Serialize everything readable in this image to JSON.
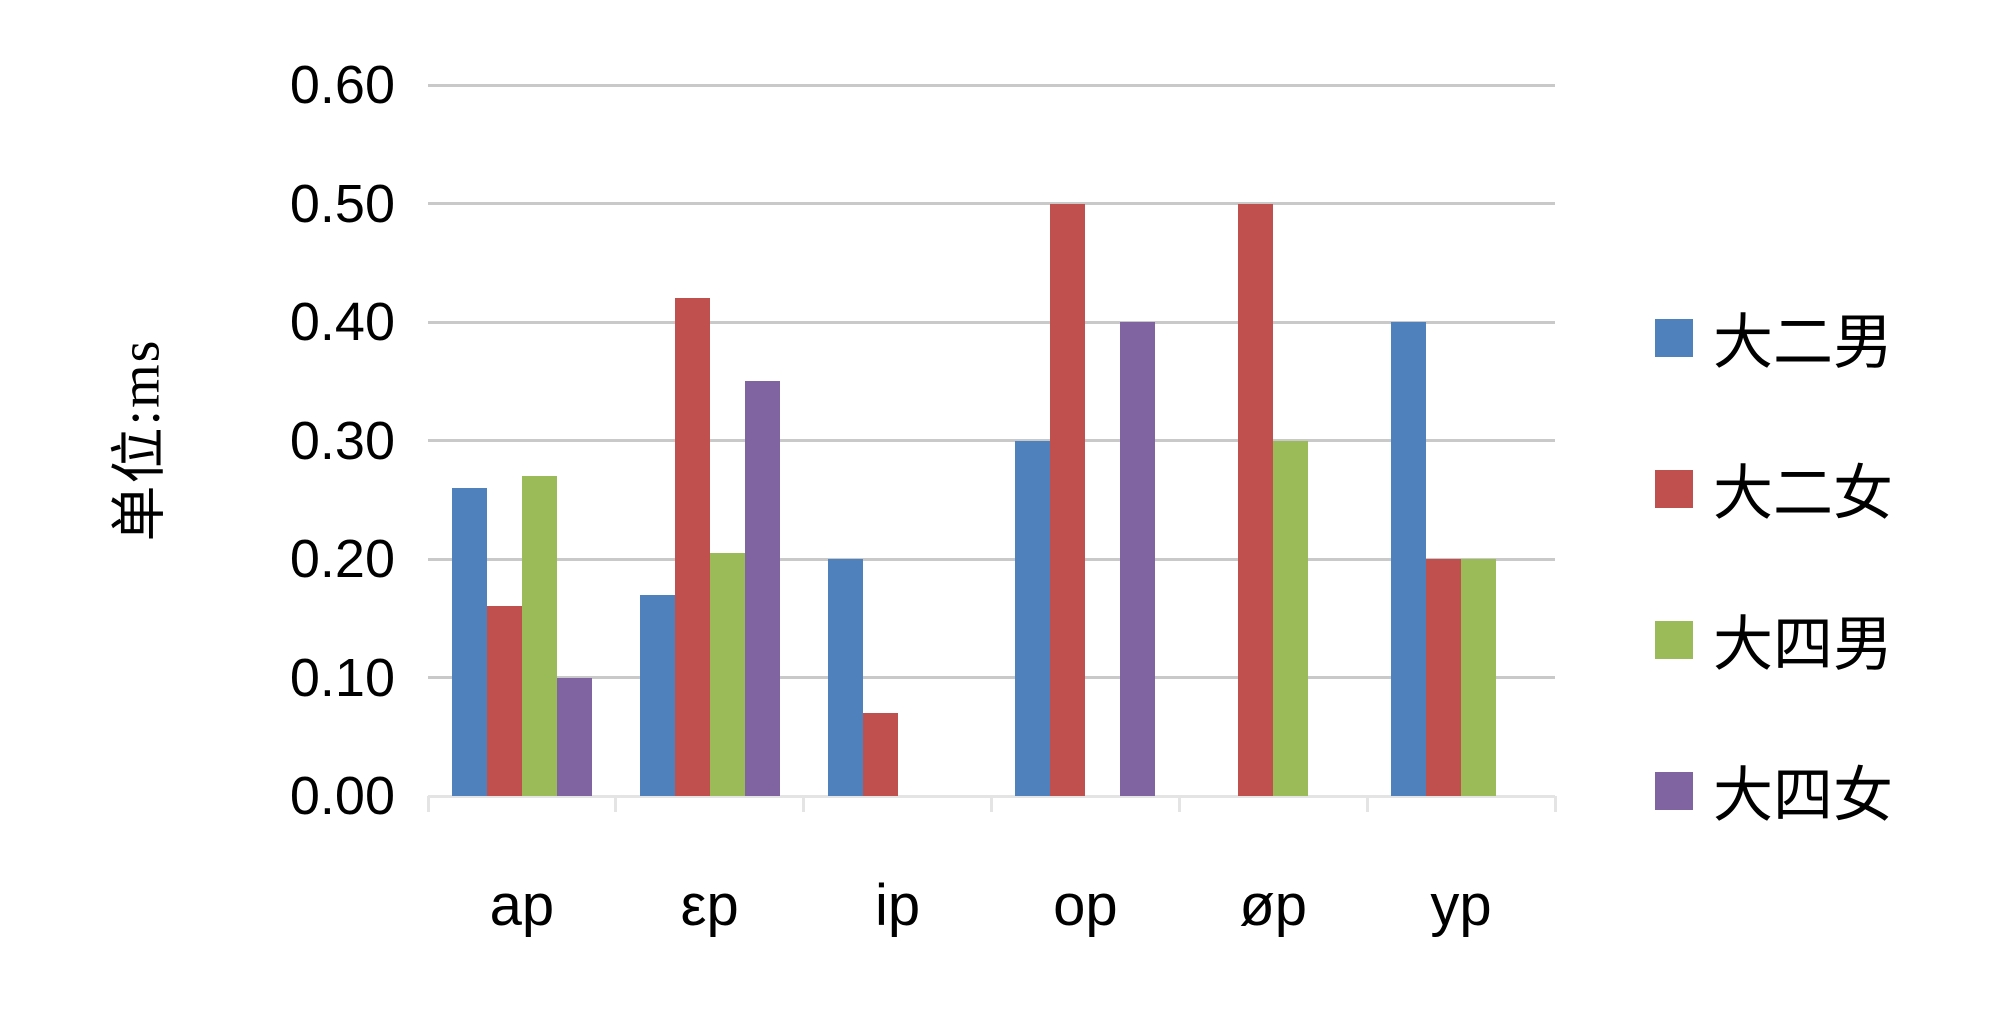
{
  "chart_data": {
    "type": "bar",
    "title": "",
    "xlabel": "",
    "ylabel": "单位:ms",
    "categories": [
      "ap",
      "εp",
      "ip",
      "op",
      "øp",
      "yp"
    ],
    "series": [
      {
        "name": "大二男",
        "color": "#4F81BD",
        "values": [
          0.26,
          0.17,
          0.2,
          0.3,
          0,
          0.4
        ]
      },
      {
        "name": "大二女",
        "color": "#C0504D",
        "values": [
          0.16,
          0.42,
          0.07,
          0.5,
          0.5,
          0.2
        ]
      },
      {
        "name": "大四男",
        "color": "#9BBB59",
        "values": [
          0.27,
          0.205,
          0,
          0,
          0.3,
          0.2
        ]
      },
      {
        "name": "大四女",
        "color": "#8064A2",
        "values": [
          0.1,
          0.35,
          0,
          0.4,
          0,
          0
        ]
      }
    ],
    "ylim": [
      0,
      0.6
    ],
    "yticks": [
      0.0,
      0.1,
      0.2,
      0.3,
      0.4,
      0.5,
      0.6
    ],
    "ytick_labels": [
      "0.00",
      "0.10",
      "0.20",
      "0.30",
      "0.40",
      "0.50",
      "0.60"
    ],
    "grid": true,
    "legend_position": "right",
    "colors": {
      "gridline": "#C9C9C9",
      "baseline": "#E4E4E4",
      "tick": "#E4E4E4",
      "text": "#000000",
      "background": "#FFFFFF"
    }
  }
}
